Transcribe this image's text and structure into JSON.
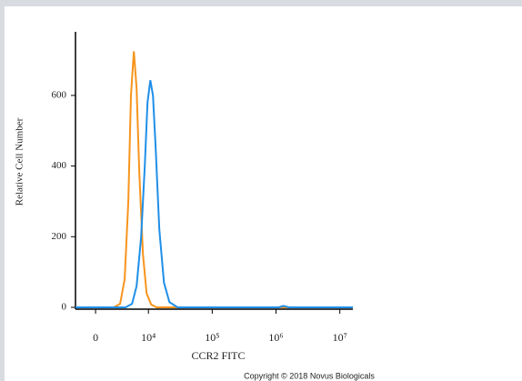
{
  "chart_data": {
    "type": "line",
    "x_label": "CCR2 FITC",
    "y_label": "Relative Cell Number",
    "annotation": "Copyright © 2018 Novus Biologicals",
    "x_scale": "biexponential",
    "xlim": [
      -3800,
      16000000
    ],
    "xticks": [
      0,
      {
        "value": 10000,
        "label": "10⁴"
      },
      {
        "value": 100000,
        "label": "10⁵"
      },
      {
        "value": 1000000,
        "label": "10⁶"
      },
      {
        "value": 10000000,
        "label": "10⁷"
      }
    ],
    "ylim": [
      0,
      780
    ],
    "yticks": [
      0,
      200,
      400,
      600
    ],
    "series": [
      {
        "color": "#f7941d",
        "x": [
          -3800,
          3450,
          4650,
          5500,
          6200,
          6700,
          7240,
          7760,
          8280,
          8970,
          9660,
          11040,
          13450,
          16000000
        ],
        "values": [
          0,
          0,
          10,
          80,
          300,
          600,
          725,
          620,
          380,
          150,
          40,
          8,
          0,
          0
        ]
      },
      {
        "color": "#1f8fe8",
        "x": [
          -3800,
          5690,
          6900,
          7760,
          8620,
          9310,
          9830,
          10700,
          11790,
          13010,
          14840,
          17500,
          21300,
          28600,
          1100000,
          1300000,
          1600000,
          16000000
        ],
        "values": [
          0,
          0,
          10,
          60,
          200,
          400,
          580,
          643,
          600,
          450,
          220,
          70,
          15,
          0,
          0,
          4,
          0,
          0
        ]
      }
    ]
  }
}
